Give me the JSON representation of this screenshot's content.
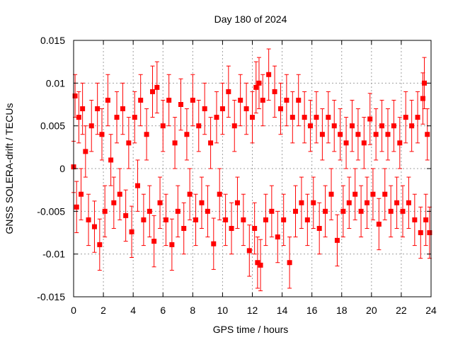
{
  "chart_data": {
    "type": "scatter",
    "title": "Day 180 of 2024",
    "xlabel": "GPS time / hours",
    "ylabel": "GNSS SOLERA-drift / TECUs",
    "xlim": [
      0,
      24
    ],
    "ylim": [
      -0.015,
      0.015
    ],
    "x_ticks": [
      0,
      2,
      4,
      6,
      8,
      10,
      12,
      14,
      16,
      18,
      20,
      22,
      24
    ],
    "x_tick_labels": [
      "0",
      "2",
      "4",
      "6",
      "8",
      "10",
      "12",
      "14",
      "16",
      "18",
      "20",
      "22",
      "24"
    ],
    "y_ticks": [
      -0.015,
      -0.01,
      -0.005,
      0,
      0.005,
      0.01,
      0.015
    ],
    "y_tick_labels": [
      "-0.015",
      "-0.01",
      "-0.005",
      "0",
      "0.005",
      "0.01",
      "0.015"
    ],
    "grid": true,
    "series_style": {
      "color": "#ff0000",
      "marker": "square",
      "error_bars": true
    },
    "series": [
      {
        "points": [
          {
            "x": 0.0,
            "y": 0.0002,
            "err": 0.003
          },
          {
            "x": 0.1,
            "y": 0.0085,
            "err": 0.0025
          },
          {
            "x": 0.2,
            "y": -0.0045,
            "err": 0.003
          },
          {
            "x": 0.35,
            "y": 0.006,
            "err": 0.003
          },
          {
            "x": 0.5,
            "y": -0.003,
            "err": 0.003
          },
          {
            "x": 0.6,
            "y": 0.007,
            "err": 0.003
          },
          {
            "x": 0.8,
            "y": 0.002,
            "err": 0.003
          },
          {
            "x": 1.0,
            "y": -0.006,
            "err": 0.003
          },
          {
            "x": 1.2,
            "y": 0.005,
            "err": 0.003
          },
          {
            "x": 1.4,
            "y": -0.0068,
            "err": 0.003
          },
          {
            "x": 1.6,
            "y": 0.007,
            "err": 0.003
          },
          {
            "x": 1.75,
            "y": -0.0089,
            "err": 0.003
          },
          {
            "x": 1.9,
            "y": 0.004,
            "err": 0.003
          },
          {
            "x": 2.1,
            "y": -0.005,
            "err": 0.003
          },
          {
            "x": 2.3,
            "y": 0.008,
            "err": 0.003
          },
          {
            "x": 2.5,
            "y": 0.001,
            "err": 0.003
          },
          {
            "x": 2.7,
            "y": -0.004,
            "err": 0.003
          },
          {
            "x": 2.9,
            "y": 0.006,
            "err": 0.003
          },
          {
            "x": 3.1,
            "y": -0.003,
            "err": 0.003
          },
          {
            "x": 3.3,
            "y": 0.007,
            "err": 0.003
          },
          {
            "x": 3.5,
            "y": -0.0055,
            "err": 0.003
          },
          {
            "x": 3.7,
            "y": 0.003,
            "err": 0.003
          },
          {
            "x": 3.9,
            "y": -0.0074,
            "err": 0.003
          },
          {
            "x": 4.1,
            "y": 0.006,
            "err": 0.003
          },
          {
            "x": 4.3,
            "y": -0.002,
            "err": 0.003
          },
          {
            "x": 4.5,
            "y": 0.008,
            "err": 0.003
          },
          {
            "x": 4.7,
            "y": -0.006,
            "err": 0.003
          },
          {
            "x": 4.9,
            "y": 0.004,
            "err": 0.003
          },
          {
            "x": 5.1,
            "y": -0.005,
            "err": 0.003
          },
          {
            "x": 5.3,
            "y": 0.009,
            "err": 0.003
          },
          {
            "x": 5.4,
            "y": -0.0085,
            "err": 0.003
          },
          {
            "x": 5.6,
            "y": 0.0095,
            "err": 0.003
          },
          {
            "x": 5.8,
            "y": -0.004,
            "err": 0.003
          },
          {
            "x": 6.0,
            "y": 0.005,
            "err": 0.003
          },
          {
            "x": 6.2,
            "y": -0.006,
            "err": 0.003
          },
          {
            "x": 6.4,
            "y": 0.008,
            "err": 0.003
          },
          {
            "x": 6.6,
            "y": -0.0089,
            "err": 0.003
          },
          {
            "x": 6.8,
            "y": 0.003,
            "err": 0.003
          },
          {
            "x": 7.0,
            "y": -0.005,
            "err": 0.003
          },
          {
            "x": 7.2,
            "y": 0.0075,
            "err": 0.003
          },
          {
            "x": 7.4,
            "y": -0.007,
            "err": 0.003
          },
          {
            "x": 7.6,
            "y": 0.004,
            "err": 0.003
          },
          {
            "x": 7.8,
            "y": -0.003,
            "err": 0.003
          },
          {
            "x": 8.0,
            "y": 0.008,
            "err": 0.003
          },
          {
            "x": 8.2,
            "y": -0.006,
            "err": 0.003
          },
          {
            "x": 8.4,
            "y": 0.005,
            "err": 0.003
          },
          {
            "x": 8.6,
            "y": -0.004,
            "err": 0.003
          },
          {
            "x": 8.8,
            "y": 0.007,
            "err": 0.003
          },
          {
            "x": 9.0,
            "y": -0.005,
            "err": 0.003
          },
          {
            "x": 9.2,
            "y": 0.003,
            "err": 0.003
          },
          {
            "x": 9.4,
            "y": -0.0088,
            "err": 0.003
          },
          {
            "x": 9.6,
            "y": 0.006,
            "err": 0.003
          },
          {
            "x": 9.8,
            "y": -0.003,
            "err": 0.003
          },
          {
            "x": 10.0,
            "y": 0.007,
            "err": 0.003
          },
          {
            "x": 10.2,
            "y": -0.006,
            "err": 0.003
          },
          {
            "x": 10.4,
            "y": 0.009,
            "err": 0.003
          },
          {
            "x": 10.6,
            "y": -0.007,
            "err": 0.003
          },
          {
            "x": 10.8,
            "y": 0.005,
            "err": 0.003
          },
          {
            "x": 11.0,
            "y": -0.004,
            "err": 0.003
          },
          {
            "x": 11.2,
            "y": 0.008,
            "err": 0.003
          },
          {
            "x": 11.4,
            "y": -0.006,
            "err": 0.003
          },
          {
            "x": 11.6,
            "y": 0.007,
            "err": 0.003
          },
          {
            "x": 11.8,
            "y": -0.0096,
            "err": 0.003
          },
          {
            "x": 12.0,
            "y": 0.006,
            "err": 0.003
          },
          {
            "x": 12.15,
            "y": -0.007,
            "err": 0.003
          },
          {
            "x": 12.25,
            "y": 0.0095,
            "err": 0.003
          },
          {
            "x": 12.35,
            "y": -0.011,
            "err": 0.003
          },
          {
            "x": 12.45,
            "y": 0.01,
            "err": 0.003
          },
          {
            "x": 12.55,
            "y": -0.0113,
            "err": 0.003
          },
          {
            "x": 12.7,
            "y": 0.008,
            "err": 0.003
          },
          {
            "x": 12.9,
            "y": -0.006,
            "err": 0.003
          },
          {
            "x": 13.1,
            "y": 0.011,
            "err": 0.003
          },
          {
            "x": 13.3,
            "y": -0.005,
            "err": 0.003
          },
          {
            "x": 13.5,
            "y": 0.009,
            "err": 0.003
          },
          {
            "x": 13.7,
            "y": -0.008,
            "err": 0.003
          },
          {
            "x": 13.9,
            "y": 0.007,
            "err": 0.003
          },
          {
            "x": 14.1,
            "y": -0.006,
            "err": 0.003
          },
          {
            "x": 14.3,
            "y": 0.008,
            "err": 0.003
          },
          {
            "x": 14.5,
            "y": -0.011,
            "err": 0.003
          },
          {
            "x": 14.7,
            "y": 0.006,
            "err": 0.003
          },
          {
            "x": 14.9,
            "y": -0.005,
            "err": 0.003
          },
          {
            "x": 15.1,
            "y": 0.008,
            "err": 0.003
          },
          {
            "x": 15.3,
            "y": -0.004,
            "err": 0.003
          },
          {
            "x": 15.5,
            "y": 0.006,
            "err": 0.003
          },
          {
            "x": 15.7,
            "y": -0.006,
            "err": 0.003
          },
          {
            "x": 15.9,
            "y": 0.005,
            "err": 0.003
          },
          {
            "x": 16.1,
            "y": -0.004,
            "err": 0.003
          },
          {
            "x": 16.3,
            "y": 0.006,
            "err": 0.003
          },
          {
            "x": 16.5,
            "y": -0.007,
            "err": 0.003
          },
          {
            "x": 16.7,
            "y": 0.004,
            "err": 0.003
          },
          {
            "x": 16.9,
            "y": -0.005,
            "err": 0.003
          },
          {
            "x": 17.1,
            "y": 0.006,
            "err": 0.003
          },
          {
            "x": 17.3,
            "y": -0.003,
            "err": 0.003
          },
          {
            "x": 17.5,
            "y": 0.005,
            "err": 0.003
          },
          {
            "x": 17.7,
            "y": -0.0084,
            "err": 0.003
          },
          {
            "x": 17.9,
            "y": 0.004,
            "err": 0.003
          },
          {
            "x": 18.1,
            "y": -0.005,
            "err": 0.003
          },
          {
            "x": 18.3,
            "y": 0.003,
            "err": 0.003
          },
          {
            "x": 18.5,
            "y": -0.004,
            "err": 0.003
          },
          {
            "x": 18.7,
            "y": 0.005,
            "err": 0.003
          },
          {
            "x": 18.9,
            "y": -0.003,
            "err": 0.003
          },
          {
            "x": 19.1,
            "y": 0.004,
            "err": 0.003
          },
          {
            "x": 19.3,
            "y": -0.005,
            "err": 0.003
          },
          {
            "x": 19.5,
            "y": 0.003,
            "err": 0.003
          },
          {
            "x": 19.7,
            "y": -0.004,
            "err": 0.003
          },
          {
            "x": 19.9,
            "y": 0.0058,
            "err": 0.003
          },
          {
            "x": 20.1,
            "y": -0.003,
            "err": 0.003
          },
          {
            "x": 20.3,
            "y": 0.004,
            "err": 0.003
          },
          {
            "x": 20.5,
            "y": -0.0065,
            "err": 0.003
          },
          {
            "x": 20.7,
            "y": 0.005,
            "err": 0.003
          },
          {
            "x": 20.9,
            "y": -0.003,
            "err": 0.003
          },
          {
            "x": 21.1,
            "y": 0.004,
            "err": 0.003
          },
          {
            "x": 21.3,
            "y": -0.005,
            "err": 0.003
          },
          {
            "x": 21.5,
            "y": 0.005,
            "err": 0.003
          },
          {
            "x": 21.7,
            "y": -0.004,
            "err": 0.003
          },
          {
            "x": 21.9,
            "y": 0.003,
            "err": 0.003
          },
          {
            "x": 22.1,
            "y": -0.005,
            "err": 0.003
          },
          {
            "x": 22.3,
            "y": 0.006,
            "err": 0.003
          },
          {
            "x": 22.5,
            "y": -0.004,
            "err": 0.003
          },
          {
            "x": 22.7,
            "y": 0.005,
            "err": 0.003
          },
          {
            "x": 22.9,
            "y": -0.006,
            "err": 0.003
          },
          {
            "x": 23.1,
            "y": 0.006,
            "err": 0.003
          },
          {
            "x": 23.3,
            "y": -0.0075,
            "err": 0.003
          },
          {
            "x": 23.45,
            "y": 0.0082,
            "err": 0.003
          },
          {
            "x": 23.55,
            "y": 0.01,
            "err": 0.003
          },
          {
            "x": 23.65,
            "y": -0.006,
            "err": 0.003
          },
          {
            "x": 23.75,
            "y": 0.004,
            "err": 0.003
          },
          {
            "x": 23.9,
            "y": -0.0075,
            "err": 0.003
          }
        ]
      }
    ]
  }
}
